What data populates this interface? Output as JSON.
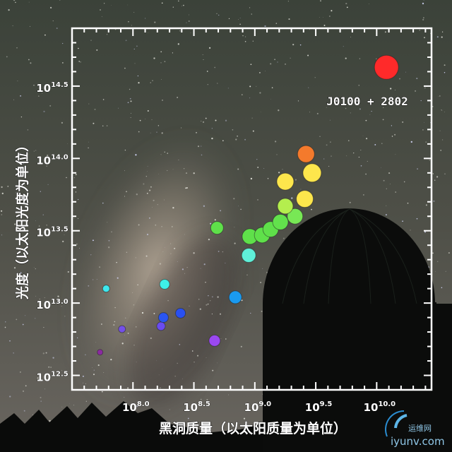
{
  "chart_data": {
    "type": "scatter",
    "xlabel": "黑洞质量（以太阳质量为单位）",
    "ylabel": "光度（以太阳光度为单位）",
    "xscale": "log",
    "yscale": "log",
    "xlim": [
      7.5,
      10.45
    ],
    "ylim": [
      12.4,
      14.9
    ],
    "x_ticks": [
      {
        "base": "10",
        "exp": "8.0",
        "value": 8.0
      },
      {
        "base": "10",
        "exp": "8.5",
        "value": 8.5
      },
      {
        "base": "10",
        "exp": "9.0",
        "value": 9.0
      },
      {
        "base": "10",
        "exp": "9.5",
        "value": 9.5
      },
      {
        "base": "10",
        "exp": "10.0",
        "value": 10.0
      }
    ],
    "y_ticks": [
      {
        "base": "10",
        "exp": "12.5",
        "value": 12.5
      },
      {
        "base": "10",
        "exp": "13.0",
        "value": 13.0
      },
      {
        "base": "10",
        "exp": "13.5",
        "value": 13.5
      },
      {
        "base": "10",
        "exp": "14.0",
        "value": 14.0
      },
      {
        "base": "10",
        "exp": "14.5",
        "value": 14.5
      }
    ],
    "grid": false,
    "legend": "none",
    "points": [
      {
        "x": 7.73,
        "y": 12.66,
        "color": "#8a2aa0"
      },
      {
        "x": 7.91,
        "y": 12.82,
        "color": "#7450e8"
      },
      {
        "x": 7.78,
        "y": 13.1,
        "color": "#3ee8ee"
      },
      {
        "x": 8.23,
        "y": 12.84,
        "color": "#6a4cf0"
      },
      {
        "x": 8.25,
        "y": 12.9,
        "color": "#2a55f0"
      },
      {
        "x": 8.39,
        "y": 12.93,
        "color": "#2a50f0"
      },
      {
        "x": 8.26,
        "y": 13.13,
        "color": "#3ef0e8"
      },
      {
        "x": 8.67,
        "y": 12.74,
        "color": "#9a48f0"
      },
      {
        "x": 8.84,
        "y": 13.04,
        "color": "#1a9af0"
      },
      {
        "x": 8.95,
        "y": 13.33,
        "color": "#5ff0d8"
      },
      {
        "x": 8.69,
        "y": 13.52,
        "color": "#5fe04a"
      },
      {
        "x": 8.96,
        "y": 13.46,
        "color": "#5fe04a"
      },
      {
        "x": 9.06,
        "y": 13.47,
        "color": "#5fe04a"
      },
      {
        "x": 9.13,
        "y": 13.51,
        "color": "#5fe04a"
      },
      {
        "x": 9.21,
        "y": 13.56,
        "color": "#62e24c"
      },
      {
        "x": 9.33,
        "y": 13.6,
        "color": "#78e855"
      },
      {
        "x": 9.25,
        "y": 13.67,
        "color": "#b4ee4e"
      },
      {
        "x": 9.41,
        "y": 13.72,
        "color": "#fde64c"
      },
      {
        "x": 9.25,
        "y": 13.84,
        "color": "#fde64c"
      },
      {
        "x": 9.47,
        "y": 13.9,
        "color": "#fde64c"
      },
      {
        "x": 9.42,
        "y": 14.03,
        "color": "#f47a2c"
      },
      {
        "x": 10.08,
        "y": 14.63,
        "color": "#ff2a2a"
      }
    ],
    "annotations": [
      {
        "text": "J0100 + 2802",
        "x": 10.08,
        "y": 14.63
      }
    ]
  },
  "watermark": {
    "cn": "运维网",
    "en": "iyunv.com"
  }
}
